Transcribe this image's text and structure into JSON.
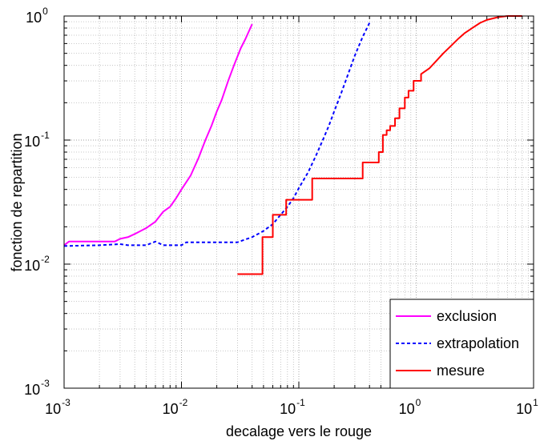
{
  "chart_data": {
    "type": "line",
    "xscale": "log",
    "yscale": "log",
    "xlim": [
      0.001,
      10
    ],
    "ylim": [
      0.001,
      1
    ],
    "grid": true,
    "xlabel": "decalage vers le rouge",
    "ylabel": "fonction de repartition",
    "x_ticks": [
      {
        "base": "10",
        "exp": "-3",
        "value": 0.001
      },
      {
        "base": "10",
        "exp": "-2",
        "value": 0.01
      },
      {
        "base": "10",
        "exp": "-1",
        "value": 0.1
      },
      {
        "base": "10",
        "exp": "0",
        "value": 1
      },
      {
        "base": "10",
        "exp": "1",
        "value": 10
      }
    ],
    "y_ticks": [
      {
        "base": "10",
        "exp": "-3",
        "value": 0.001
      },
      {
        "base": "10",
        "exp": "-2",
        "value": 0.01
      },
      {
        "base": "10",
        "exp": "-1",
        "value": 0.1
      },
      {
        "base": "10",
        "exp": "0",
        "value": 1
      }
    ],
    "legend_position": "bottom-right",
    "series": [
      {
        "name": "exclusion",
        "color": "#ff00ff",
        "style": "solid",
        "step": false,
        "points": [
          [
            0.001,
            0.0142
          ],
          [
            0.0011,
            0.0152
          ],
          [
            0.0015,
            0.0152
          ],
          [
            0.002,
            0.0152
          ],
          [
            0.0027,
            0.0152
          ],
          [
            0.003,
            0.016
          ],
          [
            0.0035,
            0.0165
          ],
          [
            0.004,
            0.0175
          ],
          [
            0.005,
            0.0195
          ],
          [
            0.006,
            0.022
          ],
          [
            0.007,
            0.0265
          ],
          [
            0.008,
            0.029
          ],
          [
            0.009,
            0.034
          ],
          [
            0.01,
            0.04
          ],
          [
            0.012,
            0.052
          ],
          [
            0.014,
            0.072
          ],
          [
            0.016,
            0.1
          ],
          [
            0.018,
            0.13
          ],
          [
            0.02,
            0.17
          ],
          [
            0.022,
            0.21
          ],
          [
            0.025,
            0.3
          ],
          [
            0.028,
            0.4
          ],
          [
            0.032,
            0.55
          ],
          [
            0.035,
            0.65
          ],
          [
            0.04,
            0.86
          ]
        ]
      },
      {
        "name": "extrapolation",
        "color": "#0000ff",
        "style": "dashed",
        "step": false,
        "points": [
          [
            0.001,
            0.014
          ],
          [
            0.002,
            0.0142
          ],
          [
            0.003,
            0.0145
          ],
          [
            0.0035,
            0.0142
          ],
          [
            0.005,
            0.0142
          ],
          [
            0.006,
            0.0152
          ],
          [
            0.007,
            0.0142
          ],
          [
            0.01,
            0.0142
          ],
          [
            0.011,
            0.015
          ],
          [
            0.015,
            0.015
          ],
          [
            0.02,
            0.015
          ],
          [
            0.03,
            0.015
          ],
          [
            0.035,
            0.0158
          ],
          [
            0.04,
            0.0165
          ],
          [
            0.05,
            0.0185
          ],
          [
            0.06,
            0.021
          ],
          [
            0.07,
            0.025
          ],
          [
            0.08,
            0.029
          ],
          [
            0.09,
            0.034
          ],
          [
            0.1,
            0.041
          ],
          [
            0.12,
            0.055
          ],
          [
            0.14,
            0.075
          ],
          [
            0.16,
            0.1
          ],
          [
            0.18,
            0.13
          ],
          [
            0.2,
            0.17
          ],
          [
            0.23,
            0.24
          ],
          [
            0.26,
            0.33
          ],
          [
            0.3,
            0.48
          ],
          [
            0.35,
            0.68
          ],
          [
            0.4,
            0.88
          ]
        ]
      },
      {
        "name": "mesure",
        "color": "#ff0000",
        "style": "solid",
        "step": true,
        "points": [
          [
            0.03,
            0.0083
          ],
          [
            0.049,
            0.0083
          ],
          [
            0.049,
            0.0165
          ],
          [
            0.06,
            0.0165
          ],
          [
            0.06,
            0.025
          ],
          [
            0.078,
            0.025
          ],
          [
            0.078,
            0.033
          ],
          [
            0.13,
            0.033
          ],
          [
            0.13,
            0.049
          ],
          [
            0.35,
            0.049
          ],
          [
            0.35,
            0.066
          ],
          [
            0.48,
            0.066
          ],
          [
            0.48,
            0.08
          ],
          [
            0.52,
            0.08
          ],
          [
            0.52,
            0.11
          ],
          [
            0.56,
            0.11
          ],
          [
            0.56,
            0.12
          ],
          [
            0.6,
            0.12
          ],
          [
            0.6,
            0.13
          ],
          [
            0.66,
            0.13
          ],
          [
            0.66,
            0.15
          ],
          [
            0.72,
            0.15
          ],
          [
            0.72,
            0.18
          ],
          [
            0.8,
            0.18
          ],
          [
            0.8,
            0.22
          ],
          [
            0.86,
            0.22
          ],
          [
            0.86,
            0.25
          ],
          [
            0.95,
            0.25
          ],
          [
            0.95,
            0.3
          ],
          [
            1.1,
            0.3
          ],
          [
            1.1,
            0.34
          ],
          [
            1.3,
            0.38
          ],
          [
            1.5,
            0.44
          ],
          [
            1.7,
            0.5
          ],
          [
            2,
            0.58
          ],
          [
            2.3,
            0.66
          ],
          [
            2.6,
            0.73
          ],
          [
            3,
            0.8
          ],
          [
            3.5,
            0.88
          ],
          [
            4,
            0.93
          ],
          [
            5,
            0.98
          ],
          [
            6,
            1
          ],
          [
            8,
            1
          ]
        ]
      }
    ]
  }
}
